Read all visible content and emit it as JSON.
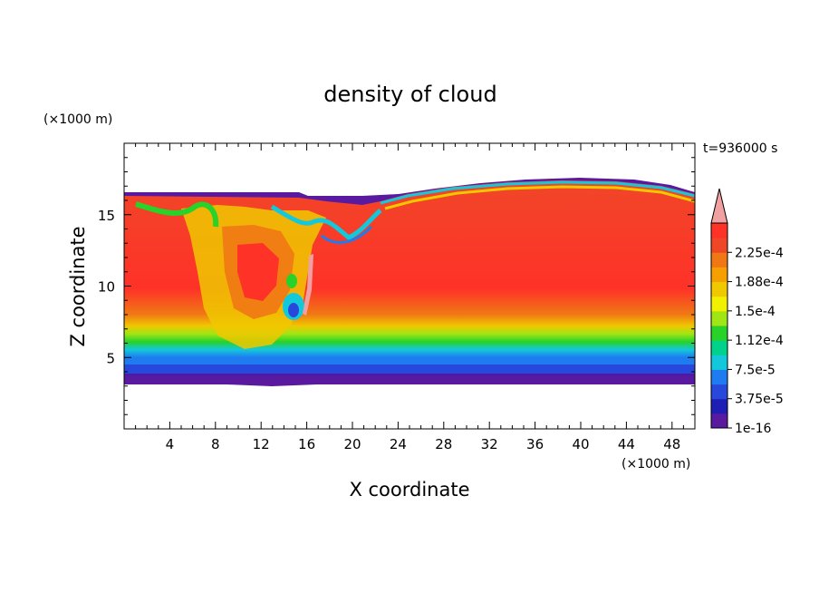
{
  "chart_data": {
    "type": "heatmap",
    "title": "density of cloud",
    "xlabel": "X coordinate",
    "ylabel": "Z coordinate",
    "x_unit": "(×1000 m)",
    "y_unit": "(×1000 m)",
    "time_label": "t=936000 s",
    "xlim": [
      0,
      50
    ],
    "ylim": [
      0,
      20
    ],
    "x_ticks": [
      "4",
      "8",
      "12",
      "16",
      "20",
      "24",
      "28",
      "32",
      "36",
      "40",
      "44",
      "48"
    ],
    "y_ticks": [
      "5",
      "10",
      "15"
    ],
    "colorbar": {
      "labels": [
        "1e-16",
        "3.75e-5",
        "7.5e-5",
        "1.12e-4",
        "1.5e-4",
        "1.88e-4",
        "2.25e-4"
      ],
      "colors": [
        "#5a1aa0",
        "#1e1eb4",
        "#2848dc",
        "#1e7cf0",
        "#14c8dc",
        "#00d28c",
        "#28d228",
        "#a0e614",
        "#f0f000",
        "#f0c800",
        "#f5a000",
        "#f07814",
        "#f04628",
        "#ff3228"
      ],
      "extend_color": "#f0a0a0"
    },
    "field_summary": {
      "cloud_base_z": 3.5,
      "cloud_top_z_left": 16.3,
      "cloud_top_z_right_peak": 17.3,
      "peak_density": 0.00024
    }
  }
}
